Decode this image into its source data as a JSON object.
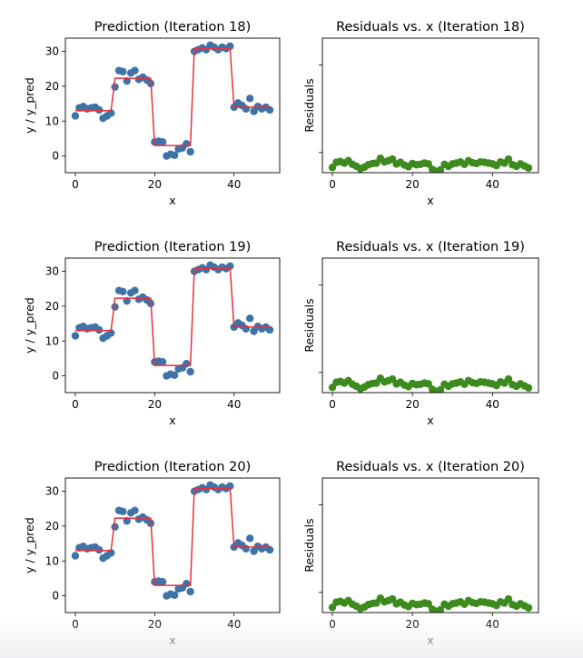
{
  "colors": {
    "scatter": "#3f73a8",
    "prediction_line": "#e8303c",
    "residual_points": "#3d8a1f"
  },
  "chart_data": [
    {
      "type": "scatter+line",
      "title": "Prediction (Iteration 18)",
      "xlabel": "x",
      "ylabel": "y / y_pred",
      "xlim": [
        -2.5,
        51.5
      ],
      "ylim": [
        -4.8,
        33.8
      ],
      "xticks": [
        0,
        20,
        40
      ],
      "yticks": [
        0,
        10,
        20,
        30
      ],
      "x": [
        0,
        1,
        2,
        3,
        4,
        5,
        6,
        7,
        8,
        9,
        10,
        11,
        12,
        13,
        14,
        15,
        16,
        17,
        18,
        19,
        20,
        21,
        22,
        23,
        24,
        25,
        26,
        27,
        28,
        29,
        30,
        31,
        32,
        33,
        34,
        35,
        36,
        37,
        38,
        39,
        40,
        41,
        42,
        43,
        44,
        45,
        46,
        47,
        48,
        49
      ],
      "y": [
        11.5,
        13.8,
        14.2,
        13.5,
        13.8,
        14.0,
        13.2,
        10.8,
        11.5,
        12.3,
        19.8,
        24.5,
        24.2,
        21.5,
        23.8,
        24.5,
        22.0,
        22.6,
        21.8,
        20.8,
        4.0,
        4.2,
        4.0,
        0.0,
        0.5,
        0.2,
        2.0,
        2.3,
        3.5,
        1.2,
        30.0,
        30.5,
        31.0,
        30.5,
        31.8,
        31.2,
        30.5,
        31.2,
        30.8,
        31.5,
        14.0,
        15.2,
        14.5,
        13.5,
        16.5,
        12.8,
        14.2,
        13.5,
        14.0,
        13.2
      ],
      "y_pred": [
        13.0,
        13.0,
        13.0,
        13.0,
        13.0,
        13.0,
        13.0,
        13.0,
        13.0,
        13.0,
        22.3,
        22.3,
        22.3,
        22.3,
        22.3,
        22.3,
        22.3,
        22.3,
        22.3,
        22.3,
        3.0,
        3.0,
        3.0,
        3.0,
        3.0,
        3.0,
        3.0,
        3.0,
        3.0,
        3.0,
        30.8,
        30.8,
        30.8,
        30.8,
        30.8,
        30.8,
        30.8,
        30.8,
        30.8,
        30.8,
        14.0,
        14.0,
        14.0,
        14.0,
        14.0,
        14.0,
        14.0,
        14.0,
        14.0,
        14.0
      ]
    },
    {
      "type": "scatter",
      "title": "Residuals vs. x (Iteration 18)",
      "xlabel": "x",
      "ylabel": "Residuals",
      "xlim": [
        -2.5,
        51.5
      ],
      "ylim": [
        -1.8,
        32.0
      ],
      "xticks": [
        0,
        20,
        40
      ],
      "x": [
        0,
        1,
        2,
        3,
        4,
        5,
        6,
        7,
        8,
        9,
        10,
        11,
        12,
        13,
        14,
        15,
        16,
        17,
        18,
        19,
        20,
        21,
        22,
        23,
        24,
        25,
        26,
        27,
        28,
        29,
        30,
        31,
        32,
        33,
        34,
        35,
        36,
        37,
        38,
        39,
        40,
        41,
        42,
        43,
        44,
        45,
        46,
        47,
        48,
        49
      ],
      "y": [
        -0.5,
        0.8,
        1.0,
        0.6,
        1.2,
        0.3,
        -0.2,
        -0.8,
        -0.4,
        0.2,
        0.5,
        0.6,
        1.8,
        0.9,
        1.2,
        1.6,
        0.4,
        0.8,
        0.1,
        -0.3,
        0.5,
        0.2,
        0.3,
        0.6,
        0.4,
        -1.0,
        -1.5,
        -1.1,
        0.3,
        -0.2,
        0.4,
        0.6,
        0.9,
        0.3,
        1.2,
        0.7,
        0.5,
        0.9,
        0.8,
        0.6,
        0.4,
        0.0,
        0.9,
        0.6,
        1.6,
        0.2,
        -0.2,
        0.4,
        -0.1,
        -0.6
      ]
    },
    {
      "type": "scatter+line",
      "title": "Prediction (Iteration 19)",
      "xlabel": "x",
      "ylabel": "y / y_pred",
      "xlim": [
        -2.5,
        51.5
      ],
      "ylim": [
        -4.8,
        33.8
      ],
      "xticks": [
        0,
        20,
        40
      ],
      "yticks": [
        0,
        10,
        20,
        30
      ],
      "x": [
        0,
        1,
        2,
        3,
        4,
        5,
        6,
        7,
        8,
        9,
        10,
        11,
        12,
        13,
        14,
        15,
        16,
        17,
        18,
        19,
        20,
        21,
        22,
        23,
        24,
        25,
        26,
        27,
        28,
        29,
        30,
        31,
        32,
        33,
        34,
        35,
        36,
        37,
        38,
        39,
        40,
        41,
        42,
        43,
        44,
        45,
        46,
        47,
        48,
        49
      ],
      "y": [
        11.5,
        13.8,
        14.2,
        13.5,
        13.8,
        14.0,
        13.2,
        10.8,
        11.5,
        12.3,
        19.8,
        24.5,
        24.2,
        21.5,
        23.8,
        24.5,
        22.0,
        22.6,
        21.8,
        20.8,
        4.0,
        4.2,
        4.0,
        0.0,
        0.5,
        0.2,
        2.0,
        2.3,
        3.5,
        1.2,
        30.0,
        30.5,
        31.0,
        30.5,
        31.8,
        31.2,
        30.5,
        31.2,
        30.8,
        31.5,
        14.0,
        15.2,
        14.5,
        13.5,
        16.5,
        12.8,
        14.2,
        13.5,
        14.0,
        13.2
      ],
      "y_pred": [
        13.0,
        13.0,
        13.0,
        13.0,
        13.0,
        13.0,
        13.0,
        13.0,
        13.0,
        13.0,
        22.3,
        22.3,
        22.3,
        22.3,
        22.3,
        22.3,
        22.3,
        22.3,
        22.3,
        22.3,
        3.0,
        3.0,
        3.0,
        3.0,
        3.0,
        3.0,
        3.0,
        3.0,
        3.0,
        3.0,
        30.8,
        30.8,
        30.8,
        30.8,
        30.8,
        30.8,
        30.8,
        30.8,
        30.8,
        30.8,
        14.0,
        14.0,
        14.0,
        14.0,
        14.0,
        14.0,
        14.0,
        14.0,
        14.0,
        14.0
      ]
    },
    {
      "type": "scatter",
      "title": "Residuals vs. x (Iteration 19)",
      "xlabel": "x",
      "ylabel": "Residuals",
      "xlim": [
        -2.5,
        51.5
      ],
      "ylim": [
        -1.8,
        32.0
      ],
      "xticks": [
        0,
        20,
        40
      ],
      "x": [
        0,
        1,
        2,
        3,
        4,
        5,
        6,
        7,
        8,
        9,
        10,
        11,
        12,
        13,
        14,
        15,
        16,
        17,
        18,
        19,
        20,
        21,
        22,
        23,
        24,
        25,
        26,
        27,
        28,
        29,
        30,
        31,
        32,
        33,
        34,
        35,
        36,
        37,
        38,
        39,
        40,
        41,
        42,
        43,
        44,
        45,
        46,
        47,
        48,
        49
      ],
      "y": [
        -0.5,
        0.8,
        1.0,
        0.6,
        1.2,
        0.3,
        -0.2,
        -0.8,
        -0.4,
        0.2,
        0.5,
        0.6,
        1.8,
        0.9,
        1.2,
        1.6,
        0.4,
        0.8,
        0.1,
        -0.3,
        0.5,
        0.2,
        0.3,
        0.6,
        0.4,
        -1.0,
        -1.5,
        -1.1,
        0.3,
        -0.2,
        0.4,
        0.6,
        0.9,
        0.3,
        1.2,
        0.7,
        0.5,
        0.9,
        0.8,
        0.6,
        0.4,
        0.0,
        0.9,
        0.6,
        1.6,
        0.2,
        -0.2,
        0.4,
        -0.1,
        -0.6
      ]
    },
    {
      "type": "scatter+line",
      "title": "Prediction (Iteration 20)",
      "xlabel": "x",
      "ylabel": "y / y_pred",
      "xlim": [
        -2.5,
        51.5
      ],
      "ylim": [
        -4.8,
        33.8
      ],
      "xticks": [
        0,
        20,
        40
      ],
      "yticks": [
        0,
        10,
        20,
        30
      ],
      "x": [
        0,
        1,
        2,
        3,
        4,
        5,
        6,
        7,
        8,
        9,
        10,
        11,
        12,
        13,
        14,
        15,
        16,
        17,
        18,
        19,
        20,
        21,
        22,
        23,
        24,
        25,
        26,
        27,
        28,
        29,
        30,
        31,
        32,
        33,
        34,
        35,
        36,
        37,
        38,
        39,
        40,
        41,
        42,
        43,
        44,
        45,
        46,
        47,
        48,
        49
      ],
      "y": [
        11.5,
        13.8,
        14.2,
        13.5,
        13.8,
        14.0,
        13.2,
        10.8,
        11.5,
        12.3,
        19.8,
        24.5,
        24.2,
        21.5,
        23.8,
        24.5,
        22.0,
        22.6,
        21.8,
        20.8,
        4.0,
        4.2,
        4.0,
        0.0,
        0.5,
        0.2,
        2.0,
        2.3,
        3.5,
        1.2,
        30.0,
        30.5,
        31.0,
        30.5,
        31.8,
        31.2,
        30.5,
        31.2,
        30.8,
        31.5,
        14.0,
        15.2,
        14.5,
        13.5,
        16.5,
        12.8,
        14.2,
        13.5,
        14.0,
        13.2
      ],
      "y_pred": [
        13.0,
        13.0,
        13.0,
        13.0,
        13.0,
        13.0,
        13.0,
        13.0,
        13.0,
        13.0,
        22.3,
        22.3,
        22.3,
        22.3,
        22.3,
        22.3,
        22.3,
        22.3,
        22.3,
        22.3,
        3.0,
        3.0,
        3.0,
        3.0,
        3.0,
        3.0,
        3.0,
        3.0,
        3.0,
        3.0,
        30.8,
        30.8,
        30.8,
        30.8,
        30.8,
        30.8,
        30.8,
        30.8,
        30.8,
        30.8,
        14.0,
        14.0,
        14.0,
        14.0,
        14.0,
        14.0,
        14.0,
        14.0,
        14.0,
        14.0
      ]
    },
    {
      "type": "scatter",
      "title": "Residuals vs. x (Iteration 20)",
      "xlabel": "x",
      "ylabel": "Residuals",
      "xlim": [
        -2.5,
        51.5
      ],
      "ylim": [
        -1.8,
        32.0
      ],
      "xticks": [
        0,
        20,
        40
      ],
      "x": [
        0,
        1,
        2,
        3,
        4,
        5,
        6,
        7,
        8,
        9,
        10,
        11,
        12,
        13,
        14,
        15,
        16,
        17,
        18,
        19,
        20,
        21,
        22,
        23,
        24,
        25,
        26,
        27,
        28,
        29,
        30,
        31,
        32,
        33,
        34,
        35,
        36,
        37,
        38,
        39,
        40,
        41,
        42,
        43,
        44,
        45,
        46,
        47,
        48,
        49
      ],
      "y": [
        -0.5,
        0.8,
        1.0,
        0.6,
        1.2,
        0.3,
        -0.2,
        -0.8,
        -0.4,
        0.2,
        0.5,
        0.6,
        1.8,
        0.9,
        1.2,
        1.6,
        0.4,
        0.8,
        0.1,
        -0.3,
        0.5,
        0.2,
        0.3,
        0.6,
        0.4,
        -1.0,
        -1.5,
        -1.1,
        0.3,
        -0.2,
        0.4,
        0.6,
        0.9,
        0.3,
        1.2,
        0.7,
        0.5,
        0.9,
        0.8,
        0.6,
        0.4,
        0.0,
        0.9,
        0.6,
        1.6,
        0.2,
        -0.2,
        0.4,
        -0.1,
        -0.6
      ]
    }
  ]
}
